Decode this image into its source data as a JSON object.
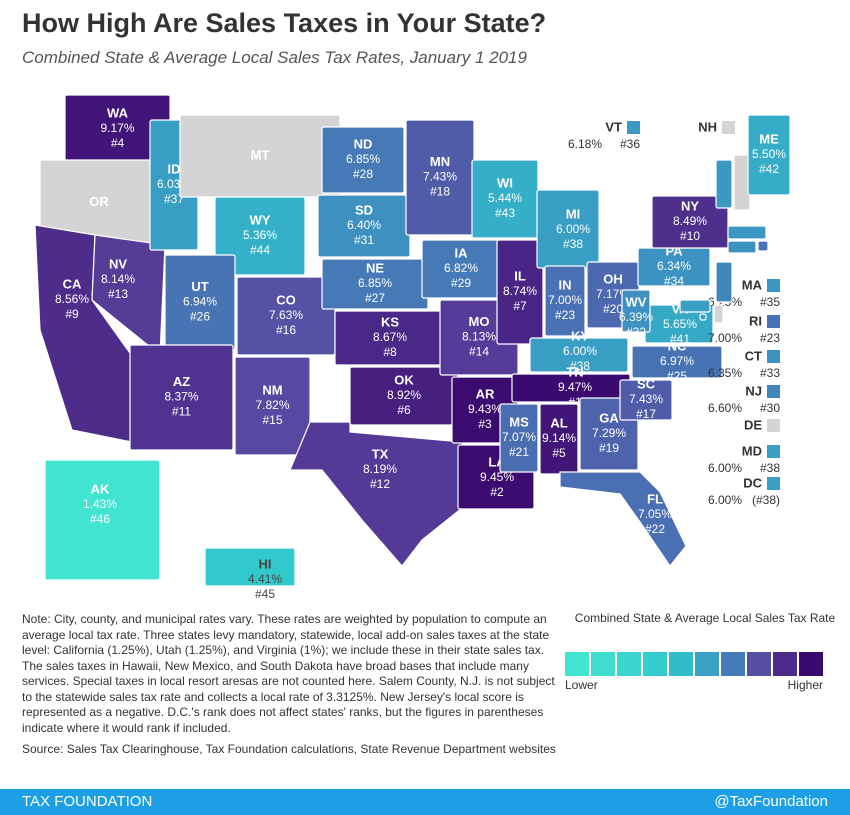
{
  "title": "How High Are Sales Taxes in Your State?",
  "subtitle": "Combined State & Average Local Sales Tax Rates, January 1 2019",
  "scale_colors": [
    "#41e3d1",
    "#3bd8cf",
    "#30c6cc",
    "#3a97c3",
    "#5a46a0",
    "#3b0a6e"
  ],
  "no_tax_color": "#d4d4d4",
  "states": [
    {
      "abbr": "WA",
      "rate": 9.17,
      "rate_label": "9.17%",
      "rank": "#4"
    },
    {
      "abbr": "OR"
    },
    {
      "abbr": "CA",
      "rate": 8.56,
      "rate_label": "8.56%",
      "rank": "#9"
    },
    {
      "abbr": "NV",
      "rate": 8.14,
      "rate_label": "8.14%",
      "rank": "#13"
    },
    {
      "abbr": "ID",
      "rate": 6.03,
      "rate_label": "6.03%",
      "rank": "#37"
    },
    {
      "abbr": "MT"
    },
    {
      "abbr": "WY",
      "rate": 5.36,
      "rate_label": "5.36%",
      "rank": "#44"
    },
    {
      "abbr": "UT",
      "rate": 6.94,
      "rate_label": "6.94%",
      "rank": "#26"
    },
    {
      "abbr": "AZ",
      "rate": 8.37,
      "rate_label": "8.37%",
      "rank": "#11"
    },
    {
      "abbr": "CO",
      "rate": 7.63,
      "rate_label": "7.63%",
      "rank": "#16"
    },
    {
      "abbr": "NM",
      "rate": 7.82,
      "rate_label": "7.82%",
      "rank": "#15"
    },
    {
      "abbr": "ND",
      "rate": 6.85,
      "rate_label": "6.85%",
      "rank": "#28"
    },
    {
      "abbr": "SD",
      "rate": 6.4,
      "rate_label": "6.40%",
      "rank": "#31"
    },
    {
      "abbr": "NE",
      "rate": 6.85,
      "rate_label": "6.85%",
      "rank": "#27"
    },
    {
      "abbr": "KS",
      "rate": 8.67,
      "rate_label": "8.67%",
      "rank": "#8"
    },
    {
      "abbr": "OK",
      "rate": 8.92,
      "rate_label": "8.92%",
      "rank": "#6"
    },
    {
      "abbr": "TX",
      "rate": 8.19,
      "rate_label": "8.19%",
      "rank": "#12"
    },
    {
      "abbr": "MN",
      "rate": 7.43,
      "rate_label": "7.43%",
      "rank": "#18"
    },
    {
      "abbr": "IA",
      "rate": 6.82,
      "rate_label": "6.82%",
      "rank": "#29"
    },
    {
      "abbr": "MO",
      "rate": 8.13,
      "rate_label": "8.13%",
      "rank": "#14"
    },
    {
      "abbr": "AR",
      "rate": 9.43,
      "rate_label": "9.43%",
      "rank": "#3"
    },
    {
      "abbr": "LA",
      "rate": 9.45,
      "rate_label": "9.45%",
      "rank": "#2"
    },
    {
      "abbr": "WI",
      "rate": 5.44,
      "rate_label": "5.44%",
      "rank": "#43"
    },
    {
      "abbr": "IL",
      "rate": 8.74,
      "rate_label": "8.74%",
      "rank": "#7"
    },
    {
      "abbr": "MI",
      "rate": 6.0,
      "rate_label": "6.00%",
      "rank": "#38"
    },
    {
      "abbr": "IN",
      "rate": 7.0,
      "rate_label": "7.00%",
      "rank": "#23"
    },
    {
      "abbr": "OH",
      "rate": 7.17,
      "rate_label": "7.17%",
      "rank": "#20"
    },
    {
      "abbr": "KY",
      "rate": 6.0,
      "rate_label": "6.00%",
      "rank": "#38"
    },
    {
      "abbr": "TN",
      "rate": 9.47,
      "rate_label": "9.47%",
      "rank": "#1"
    },
    {
      "abbr": "MS",
      "rate": 7.07,
      "rate_label": "7.07%",
      "rank": "#21"
    },
    {
      "abbr": "AL",
      "rate": 9.14,
      "rate_label": "9.14%",
      "rank": "#5"
    },
    {
      "abbr": "GA",
      "rate": 7.29,
      "rate_label": "7.29%",
      "rank": "#19"
    },
    {
      "abbr": "FL",
      "rate": 7.05,
      "rate_label": "7.05%",
      "rank": "#22"
    },
    {
      "abbr": "SC",
      "rate": 7.43,
      "rate_label": "7.43%",
      "rank": "#17"
    },
    {
      "abbr": "NC",
      "rate": 6.97,
      "rate_label": "6.97%",
      "rank": "#25"
    },
    {
      "abbr": "VA",
      "rate": 5.65,
      "rate_label": "5.65%",
      "rank": "#41"
    },
    {
      "abbr": "WV",
      "rate": 6.39,
      "rate_label": "6.39%",
      "rank": "#32"
    },
    {
      "abbr": "PA",
      "rate": 6.34,
      "rate_label": "6.34%",
      "rank": "#34"
    },
    {
      "abbr": "NY",
      "rate": 8.49,
      "rate_label": "8.49%",
      "rank": "#10"
    },
    {
      "abbr": "VT",
      "rate": 6.18,
      "rate_label": "6.18%",
      "rank": "#36"
    },
    {
      "abbr": "NH"
    },
    {
      "abbr": "ME",
      "rate": 5.5,
      "rate_label": "5.50%",
      "rank": "#42"
    },
    {
      "abbr": "MA",
      "rate": 6.25,
      "rate_label": "6.25%",
      "rank": "#35"
    },
    {
      "abbr": "RI",
      "rate": 7.0,
      "rate_label": "7.00%",
      "rank": "#23"
    },
    {
      "abbr": "CT",
      "rate": 6.35,
      "rate_label": "6.35%",
      "rank": "#33"
    },
    {
      "abbr": "NJ",
      "rate": 6.6,
      "rate_label": "6.60%",
      "rank": "#30"
    },
    {
      "abbr": "DE"
    },
    {
      "abbr": "MD",
      "rate": 6.0,
      "rate_label": "6.00%",
      "rank": "#38"
    },
    {
      "abbr": "DC",
      "rate": 6.0,
      "rate_label": "6.00%",
      "rank": "(#38)"
    },
    {
      "abbr": "AK",
      "rate": 1.43,
      "rate_label": "1.43%",
      "rank": "#46"
    },
    {
      "abbr": "HI",
      "rate": 4.41,
      "rate_label": "4.41%",
      "rank": "#45"
    }
  ],
  "legend": {
    "title": "Combined State & Average Local Sales Tax Rate",
    "low": "Lower",
    "high": "Higher"
  },
  "note": "Note: City, county, and municipal rates vary. These rates are weighted by population to compute an average local tax rate. Three states levy mandatory, statewide, local add-on sales taxes at the state level: California (1.25%), Utah (1.25%), and Virginia (1%); we include these in their state sales tax. The sales taxes in Hawaii, New Mexico, and South Dakota have broad bases that include many services. Special taxes in local resort aresas are not counted here. Salem County, N.J. is not subject to the statewide sales tax rate and collects a local rate of 3.3125%. New Jersey's local score is represented as a negative. D.C.'s rank does not affect states' ranks, but the figures in parentheses indicate where it would rank if included.",
  "source": "Source: Sales Tax Clearinghouse, Tax Foundation calculations, State Revenue Department websites",
  "footer": {
    "left": "TAX FOUNDATION",
    "right": "@TaxFoundation"
  }
}
